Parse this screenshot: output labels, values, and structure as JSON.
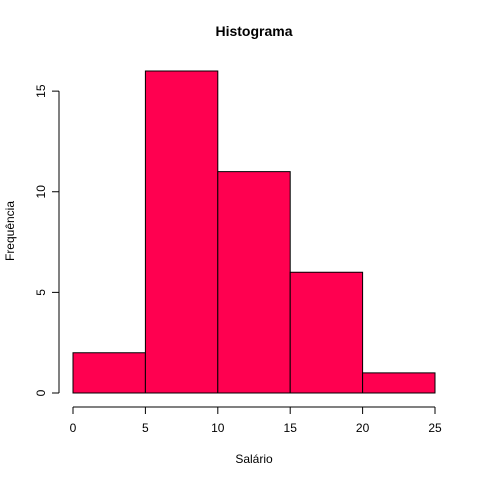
{
  "chart_data": {
    "type": "bar",
    "title": "Histograma",
    "xlabel": "Salário",
    "ylabel": "Frequência",
    "bins": [
      {
        "start": 0,
        "end": 5,
        "count": 2
      },
      {
        "start": 5,
        "end": 10,
        "count": 16
      },
      {
        "start": 10,
        "end": 15,
        "count": 11
      },
      {
        "start": 15,
        "end": 20,
        "count": 6
      },
      {
        "start": 20,
        "end": 25,
        "count": 1
      }
    ],
    "xlim": [
      0,
      25
    ],
    "ylim": [
      0,
      16
    ],
    "x_ticks": [
      0,
      5,
      10,
      15,
      20,
      25
    ],
    "y_ticks": [
      0,
      5,
      10,
      15
    ],
    "bar_color": "#FF0050",
    "grid": false
  }
}
